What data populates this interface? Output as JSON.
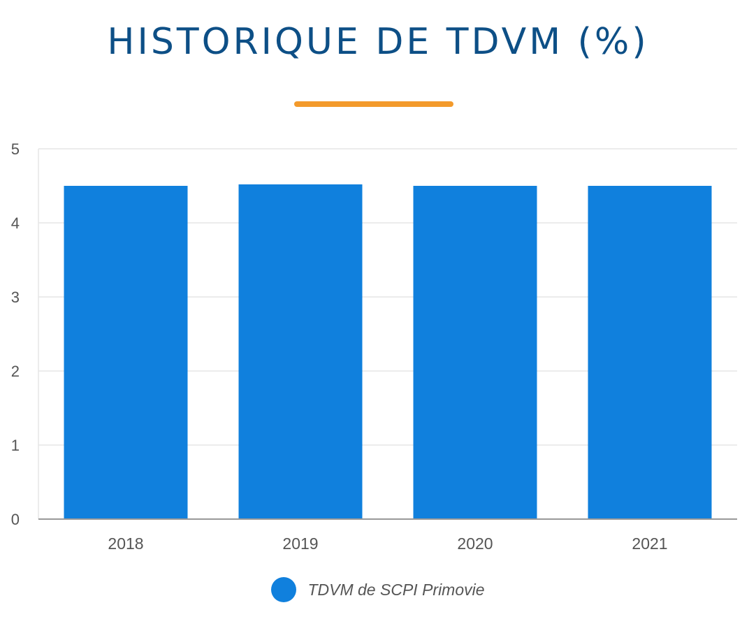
{
  "title": "HISTORIQUE DE TDVM (%)",
  "colors": {
    "title": "#0d4f86",
    "accent_bar": "#f39a2b",
    "bar": "#1080dd",
    "grid": "#e6e6e6",
    "axis": "#999999",
    "tick_text": "#555555"
  },
  "legend": {
    "label": "TDVM de SCPI Primovie",
    "icon": "circle"
  },
  "chart_data": {
    "type": "bar",
    "categories": [
      "2018",
      "2019",
      "2020",
      "2021"
    ],
    "series": [
      {
        "name": "TDVM de SCPI Primovie",
        "values": [
          4.5,
          4.52,
          4.5,
          4.5
        ]
      }
    ],
    "title": "HISTORIQUE DE TDVM (%)",
    "xlabel": "",
    "ylabel": "",
    "ylim": [
      0,
      5
    ],
    "yticks": [
      0,
      1,
      2,
      3,
      4,
      5
    ],
    "grid": true,
    "legend_position": "bottom"
  }
}
